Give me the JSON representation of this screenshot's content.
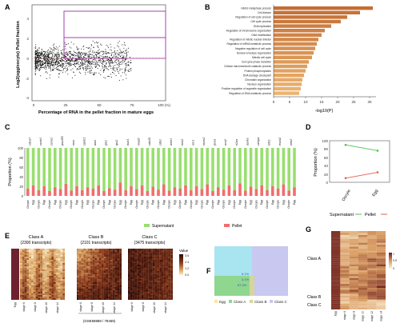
{
  "panels": {
    "A": {
      "letter": "A",
      "ylabel": "Log2(egg/oocyte) Pellet fraction",
      "xlabel": "Percentage of RNA in the pellet fraction in mature eggs",
      "x_ticks": [
        "0",
        "25",
        "50",
        "75",
        "100 (%)"
      ],
      "y_ticks": [
        "4",
        "2",
        "0",
        "-2",
        "-4"
      ]
    },
    "B": {
      "letter": "B",
      "xlabel": "-log10(P)",
      "x_ticks": [
        "0",
        "5",
        "10",
        "15",
        "20",
        "25",
        "30"
      ],
      "terms": [
        "mitotic metaphase process",
        "Cell division",
        "Regulation of cell cycle process",
        "Cell cycle process",
        "DNA replication",
        "Regulation of chromosome organization",
        "DNA modification",
        "Regulation of mitotic nuclear division",
        "Regulation of mRNA metabolic process",
        "Negative regulation of cell cycle",
        "Nuclear envelope organization",
        "Meiotic cell cycle",
        "Cell cycle phase transition",
        "Cellular macromolecule catabolic process",
        "Protein phosphorylation",
        "DNA damage checkpoint",
        "Chromatin organization",
        "Nucleus organization",
        "Positive regulation of organelle organization",
        "Regulation of DNA metabolic process"
      ],
      "values": [
        31,
        27,
        23,
        21,
        18,
        16,
        15,
        14,
        13.5,
        13,
        12.5,
        12,
        11,
        10.5,
        10,
        9.5,
        9,
        8.8,
        8.5,
        8
      ]
    },
    "C": {
      "letter": "C",
      "ylabel": "Proportion (%)",
      "y_ticks": [
        "100",
        "80",
        "60",
        "40",
        "20",
        "0"
      ],
      "genes": [
        "cdca7",
        "ccnb1",
        "ccna1",
        "pou5f3",
        "mos",
        "cpeb1",
        "dazl",
        "plk1",
        "tpx2",
        "bub1",
        "mad2",
        "cdc20",
        "cdk1",
        "wee1",
        "emi2",
        "orc1",
        "mcm2",
        "pcna",
        "rrm2",
        "h2ax",
        "aurka",
        "cenpa",
        "kif11",
        "esco2",
        "nek2"
      ],
      "stage_labels": [
        "Oocyte",
        "Egg"
      ],
      "pellet_values": [
        15,
        22,
        12,
        20,
        10,
        18,
        14,
        25,
        11,
        20,
        12,
        18,
        15,
        22,
        10,
        16,
        13,
        28,
        12,
        20,
        14,
        22,
        10,
        19,
        13,
        24,
        11,
        18,
        15,
        22,
        12,
        20,
        14,
        24,
        10,
        18,
        13,
        22,
        12,
        26,
        11,
        19,
        14,
        22,
        12,
        20,
        15,
        24,
        11,
        18
      ],
      "legend": [
        "Supernatant",
        "Pellet"
      ],
      "colors": {
        "supernatant": "#99df6f",
        "pellet": "#ef6e6e"
      }
    },
    "D": {
      "letter": "D",
      "ylabel": "Proportion (%)",
      "y_ticks": [
        "100",
        "80",
        "60",
        "40",
        "20",
        "0"
      ],
      "x_labels": [
        "Oocyte",
        "Egg"
      ],
      "supernatant": [
        90,
        76
      ],
      "pellet": [
        10,
        24
      ],
      "legend": [
        "Supernatant",
        "Pellet"
      ]
    },
    "E": {
      "letter": "E",
      "classes": [
        {
          "title": "Class A",
          "subtitle": "(2300 transcripts)"
        },
        {
          "title": "Class B",
          "subtitle": "(2101 transcripts)"
        },
        {
          "title": "Class C",
          "subtitle": "(3475 transcripts)"
        }
      ],
      "left_xlabel": "Egg",
      "stage_labels": [
        "stage 6",
        "stage 8",
        "stage 10",
        "stage 14"
      ],
      "bracket_label": "(GSE59888 / 78469)",
      "colorbar_title": "Value",
      "colorbar_ticks": [
        "3.6",
        "2.4",
        "1.2",
        "0.0"
      ]
    },
    "F": {
      "letter": "F",
      "legend": [
        "Egg",
        "Class A",
        "Class B",
        "Class C"
      ],
      "values": [
        "6.1%",
        "4.1%",
        "87.3%"
      ]
    },
    "G": {
      "letter": "G",
      "row_labels": [
        "Class A",
        "Class B",
        "Class C"
      ],
      "x_labels": [
        "Egg",
        "stage 6",
        "stage 8",
        "stage 10",
        "stage 12",
        "stage 14"
      ],
      "colorbar_ticks": [
        "1",
        "0.5",
        "0"
      ]
    }
  }
}
